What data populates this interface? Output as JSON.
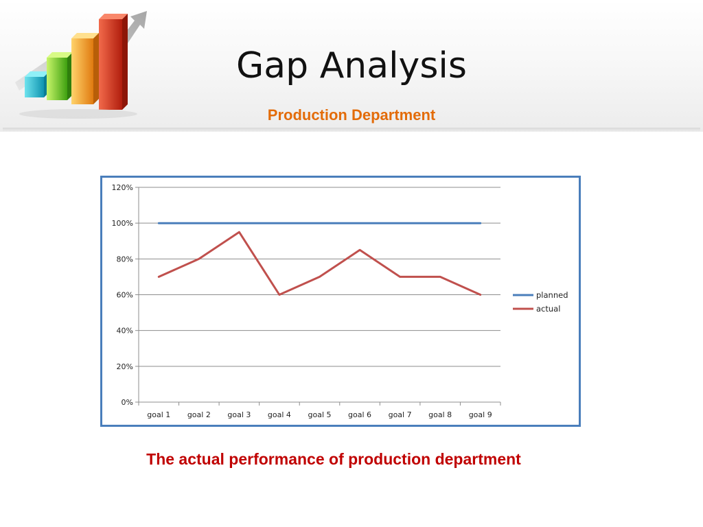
{
  "slide": {
    "title": "Gap Analysis",
    "subtitle": "Production Department",
    "caption": "The actual performance of production department"
  },
  "logo": {
    "icon": "bar-chart-growth-icon",
    "bar_colors": [
      "#1ab7c9",
      "#6ccb1f",
      "#f3a21a",
      "#d8331a"
    ],
    "arrow_color": "#b9b9b9"
  },
  "colors": {
    "subtitle": "#e36c0a",
    "caption": "#c00000",
    "frame_border": "#4a7ebb",
    "planned_series": "#4a7ebb",
    "actual_series": "#c0504d"
  },
  "chart_data": {
    "type": "line",
    "title": "",
    "xlabel": "",
    "ylabel": "",
    "categories": [
      "goal 1",
      "goal 2",
      "goal 3",
      "goal 4",
      "goal 5",
      "goal 6",
      "goal 7",
      "goal 8",
      "goal 9"
    ],
    "series": [
      {
        "name": "planned",
        "color": "#4a7ebb",
        "values": [
          1.0,
          1.0,
          1.0,
          1.0,
          1.0,
          1.0,
          1.0,
          1.0,
          1.0
        ]
      },
      {
        "name": "actual",
        "color": "#c0504d",
        "values": [
          0.7,
          0.8,
          0.95,
          0.6,
          0.7,
          0.85,
          0.7,
          0.7,
          0.6
        ]
      }
    ],
    "ylim": [
      0,
      1.2
    ],
    "yticks": [
      0,
      0.2,
      0.4,
      0.6,
      0.8,
      1.0,
      1.2
    ],
    "ytick_labels": [
      "0%",
      "20%",
      "40%",
      "60%",
      "80%",
      "100%",
      "120%"
    ],
    "grid": true,
    "legend_position": "right"
  }
}
